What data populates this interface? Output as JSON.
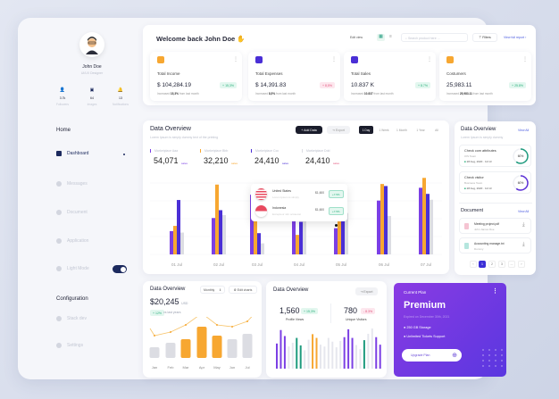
{
  "colors": {
    "purple": "#7b3fe4",
    "orange": "#f7a731",
    "indigo": "#4a2fd6",
    "gray": "#dcdde3",
    "teal": "#1f9b7e",
    "navy": "#1c2a5e"
  },
  "profile": {
    "name": "John Doe",
    "role": "UI/UX Designer",
    "stats": [
      {
        "icon": "user-icon",
        "value": "3.7k",
        "label": "Followers"
      },
      {
        "icon": "image-icon",
        "value": "64",
        "label": "Images"
      },
      {
        "icon": "bell-icon",
        "value": "13",
        "label": "Notifications"
      }
    ]
  },
  "sidebar": {
    "home_heading": "Home",
    "items": [
      {
        "label": "Dashboard",
        "icon": "home-icon",
        "active": true
      },
      {
        "label": "Messages",
        "icon": "message-icon"
      },
      {
        "label": "Document",
        "icon": "document-icon"
      },
      {
        "label": "Application",
        "icon": "grid-icon"
      },
      {
        "label": "Light Mode",
        "icon": "contrast-icon",
        "toggle": true
      }
    ],
    "config_heading": "Configuration",
    "config_items": [
      {
        "label": "Stack dev",
        "icon": "stack-icon"
      },
      {
        "label": "Settings",
        "icon": "gear-icon"
      }
    ]
  },
  "header": {
    "welcome": "Welcome back John Doe",
    "edit_view": "Edit view",
    "search_placeholder": "Search product here ...",
    "filters": "Filters",
    "view_full_report": "View full report"
  },
  "kpis": [
    {
      "title": "Total Income",
      "value": "$ 104,284.19",
      "badge": "+ 15,3%",
      "badge_type": "green",
      "note_prefix": "Increased",
      "note_value": "15,3%",
      "note_suffix": "from last month",
      "icon_color": "#f7a731"
    },
    {
      "title": "Total Expenses",
      "value": "$ 14,391.83",
      "badge": "+ 8,5%",
      "badge_type": "pink",
      "note_prefix": "Increased",
      "note_value": "8,5%",
      "note_suffix": "from last month",
      "icon_color": "#4a2fd6"
    },
    {
      "title": "Total Sales",
      "value": "10.837 K",
      "badge": "+ 8.7%",
      "badge_type": "green",
      "note_prefix": "Increased",
      "note_value": "10.837",
      "note_suffix": "from last month",
      "icon_color": "#4a2fd6"
    },
    {
      "title": "Costumers",
      "value": "25,983.11",
      "badge": "+ 25.8%",
      "badge_type": "green",
      "note_prefix": "Increased",
      "note_value": "25,983.11",
      "note_suffix": "from last month",
      "icon_color": "#f7a731"
    }
  ],
  "overview": {
    "title": "Data Overview",
    "subtitle": "Lorem Ipsum is simply dummy text of the printing",
    "add_data": "+ Add Data",
    "export": "Export",
    "ranges": [
      "1 Day",
      "1 Week",
      "1 Month",
      "1 Year",
      "All"
    ],
    "markets": [
      {
        "label": "Marketplace Aaa",
        "value": "54,071",
        "unit": "sales",
        "color": "#7b3fe4"
      },
      {
        "label": "Marketplace Bbb",
        "value": "32,210",
        "unit": "sales",
        "color": "#f7a731"
      },
      {
        "label": "Marketplace Ccc",
        "value": "24,410",
        "unit": "sales",
        "color": "#4a2fd6"
      },
      {
        "label": "Marketplace Ddd",
        "value": "24,410",
        "unit": "sales",
        "color": "#dcdde3"
      }
    ],
    "tooltip": [
      {
        "country": "United States",
        "sub": "Lorem Ipsum is simply",
        "amount": "$1,600",
        "badge": "+7.5%"
      },
      {
        "country": "Indonesia",
        "sub": "Excepteur sint occaecat",
        "amount": "$1,600",
        "badge": "+7.5%"
      }
    ]
  },
  "chart_data": [
    {
      "type": "bar",
      "categories": [
        "01 Jul",
        "02 Jul",
        "03 Jul",
        "04 Jul",
        "05 Jul",
        "06 Jul",
        "07 Jul"
      ],
      "series": [
        {
          "name": "Marketplace Aaa",
          "values": [
            80,
            125,
            205,
            135,
            90,
            185,
            229
          ]
        },
        {
          "name": "Marketplace Bbb",
          "values": [
            98,
            240,
            150,
            67,
            135,
            242,
            263
          ]
        },
        {
          "name": "Marketplace Ccc",
          "values": [
            187,
            152,
            73,
            112,
            132,
            235,
            208
          ]
        },
        {
          "name": "Marketplace Ddd",
          "values": [
            75,
            135,
            38,
            135,
            142,
            132,
            188
          ]
        }
      ]
    },
    {
      "type": "bar",
      "title": "Data Overview",
      "categories": [
        "Jan",
        "Feb",
        "Mar",
        "Apr",
        "May",
        "Jun",
        "Jul"
      ],
      "values": [
        12,
        17,
        21,
        35,
        25,
        21,
        27
      ],
      "highlight": [
        "Mar",
        "Apr",
        "May"
      ],
      "line": [
        25,
        29,
        37,
        50,
        37,
        35,
        41
      ]
    },
    {
      "type": "bar",
      "title": "Data Overview",
      "values": [
        67,
        103,
        87,
        59,
        69,
        82,
        62,
        49,
        77,
        92,
        82,
        64,
        59,
        82,
        72,
        57,
        74,
        84,
        105,
        82,
        63,
        52,
        76,
        93,
        123,
        84,
        64
      ],
      "colors": [
        "p",
        "p",
        "p",
        "g",
        "g",
        "t",
        "t",
        "g",
        "g",
        "o",
        "o",
        "g",
        "g",
        "g",
        "g",
        "g",
        "g",
        "p",
        "p",
        "p",
        "g",
        "g",
        "t",
        "g",
        "g",
        "p",
        "p"
      ]
    }
  ],
  "small_left": {
    "title": "Data Overview",
    "select": "Monthly",
    "edit": "Edit charts",
    "value": "$20,245",
    "unit": "USD",
    "badge": "+ 12%",
    "badge_note": "vs last years"
  },
  "small_mid": {
    "title": "Data Overview",
    "export": "Export",
    "a_value": "1,560",
    "a_badge": "+ 15,3%",
    "a_label": "Profile Views",
    "b_value": "780",
    "b_badge": "- 8.3%",
    "b_label": "Unique Visitors"
  },
  "plan": {
    "label": "Current Plan",
    "name": "Premium",
    "expiry": "Expired on December 30th, 2021",
    "features": [
      "250 GB Storage",
      "Unlimited Tickets Support"
    ],
    "button": "Upgrade Plan"
  },
  "right": {
    "title": "Data Overview",
    "view_all": "View All",
    "subtitle": "Lorem Ipsum is simply dummy",
    "tasks": [
      {
        "title": "Check com attributes",
        "team": "iOS Team",
        "date": "28 Aug, 2020 · 12:13",
        "percent": "60%",
        "color": "#1f9b7e",
        "progress": 0.6
      },
      {
        "title": "Check visitor",
        "team": "Business Team",
        "date": "28 Aug, 2020 · 12:13",
        "percent": "60%",
        "color": "#5b2fd6",
        "progress": 0.6
      }
    ],
    "doc_title": "Document",
    "doc_view_all": "View All",
    "docs": [
      {
        "name": "Meeting project.pdf",
        "owner": "John James Doe",
        "color": "#e2557d"
      },
      {
        "name": "Accounting manage.txt",
        "owner": "Dummy",
        "color": "#2bb7a0"
      }
    ],
    "pages": [
      "‹",
      "1",
      "2",
      "3",
      "...",
      "›"
    ]
  }
}
